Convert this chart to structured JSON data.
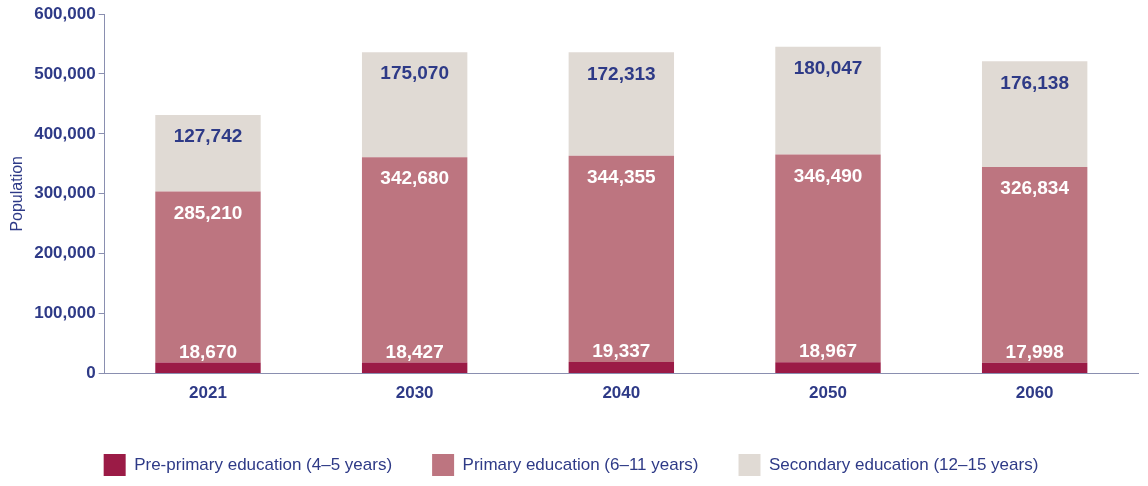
{
  "chart_data": {
    "type": "bar",
    "stacked": true,
    "ylabel": "Population",
    "categories": [
      "2021",
      "2030",
      "2040",
      "2050",
      "2060"
    ],
    "series": [
      {
        "name": "Pre-primary education (4–5 years)",
        "color": "#9b1b46",
        "values": [
          18670,
          18427,
          19337,
          18967,
          17998
        ],
        "value_labels": [
          "18,670",
          "18,427",
          "19,337",
          "18,967",
          "17,998"
        ]
      },
      {
        "name": "Primary education (6–11 years)",
        "color": "#bd7580",
        "values": [
          285210,
          342680,
          344355,
          346490,
          326834
        ],
        "value_labels": [
          "285,210",
          "342,680",
          "344,355",
          "346,490",
          "326,834"
        ]
      },
      {
        "name": "Secondary education (12–15 years)",
        "color": "#e0dad4",
        "values": [
          127742,
          175070,
          172313,
          180047,
          176138
        ],
        "value_labels": [
          "127,742",
          "175,070",
          "172,313",
          "180,047",
          "176,138"
        ]
      }
    ],
    "ylim": [
      0,
      600000
    ],
    "yticks": [
      0,
      {
        "value": 100000,
        "label": "100,000"
      },
      {
        "value": 200000,
        "label": "200,000"
      },
      {
        "value": 300000,
        "label": "300,000"
      },
      {
        "value": 400000,
        "label": "400,000"
      },
      {
        "value": 500000,
        "label": "500,000"
      },
      {
        "value": 600000,
        "label": "600,000"
      }
    ],
    "grid": false,
    "legend": "bottom"
  }
}
